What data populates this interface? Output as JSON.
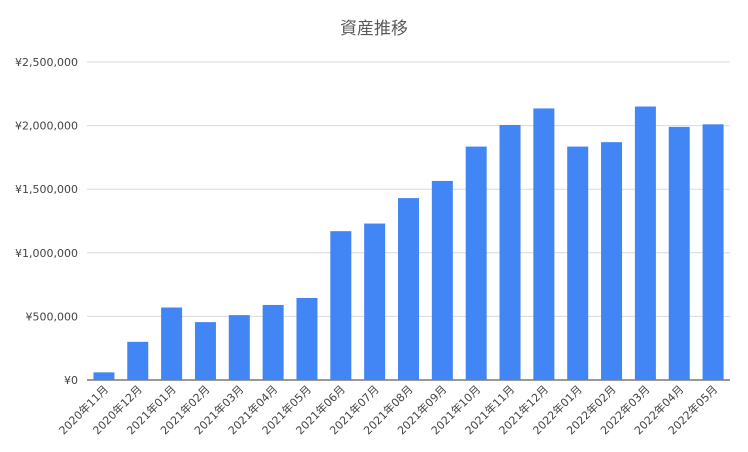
{
  "chart_data": {
    "type": "bar",
    "title": "資産推移",
    "xlabel": "",
    "ylabel": "",
    "ylim": [
      0,
      2500000
    ],
    "yticks": [
      0,
      500000,
      1000000,
      1500000,
      2000000,
      2500000
    ],
    "ytick_labels": [
      "¥0",
      "¥500,000",
      "¥1,000,000",
      "¥1,500,000",
      "¥2,000,000",
      "¥2,500,000"
    ],
    "grid": true,
    "legend": "none",
    "bar_color": "#4285f4",
    "categories": [
      "2020年11月",
      "2020年12月",
      "2021年01月",
      "2021年02月",
      "2021年03月",
      "2021年04月",
      "2021年05月",
      "2021年06月",
      "2021年07月",
      "2021年08月",
      "2021年09月",
      "2021年10月",
      "2021年11月",
      "2021年12月",
      "2022年01月",
      "2022年02月",
      "2022年03月",
      "2022年04月",
      "2022年05月"
    ],
    "values": [
      60000,
      300000,
      570000,
      455000,
      510000,
      590000,
      645000,
      1170000,
      1230000,
      1430000,
      1565000,
      1835000,
      2005000,
      2135000,
      1835000,
      1870000,
      2150000,
      1990000,
      2010000
    ]
  }
}
